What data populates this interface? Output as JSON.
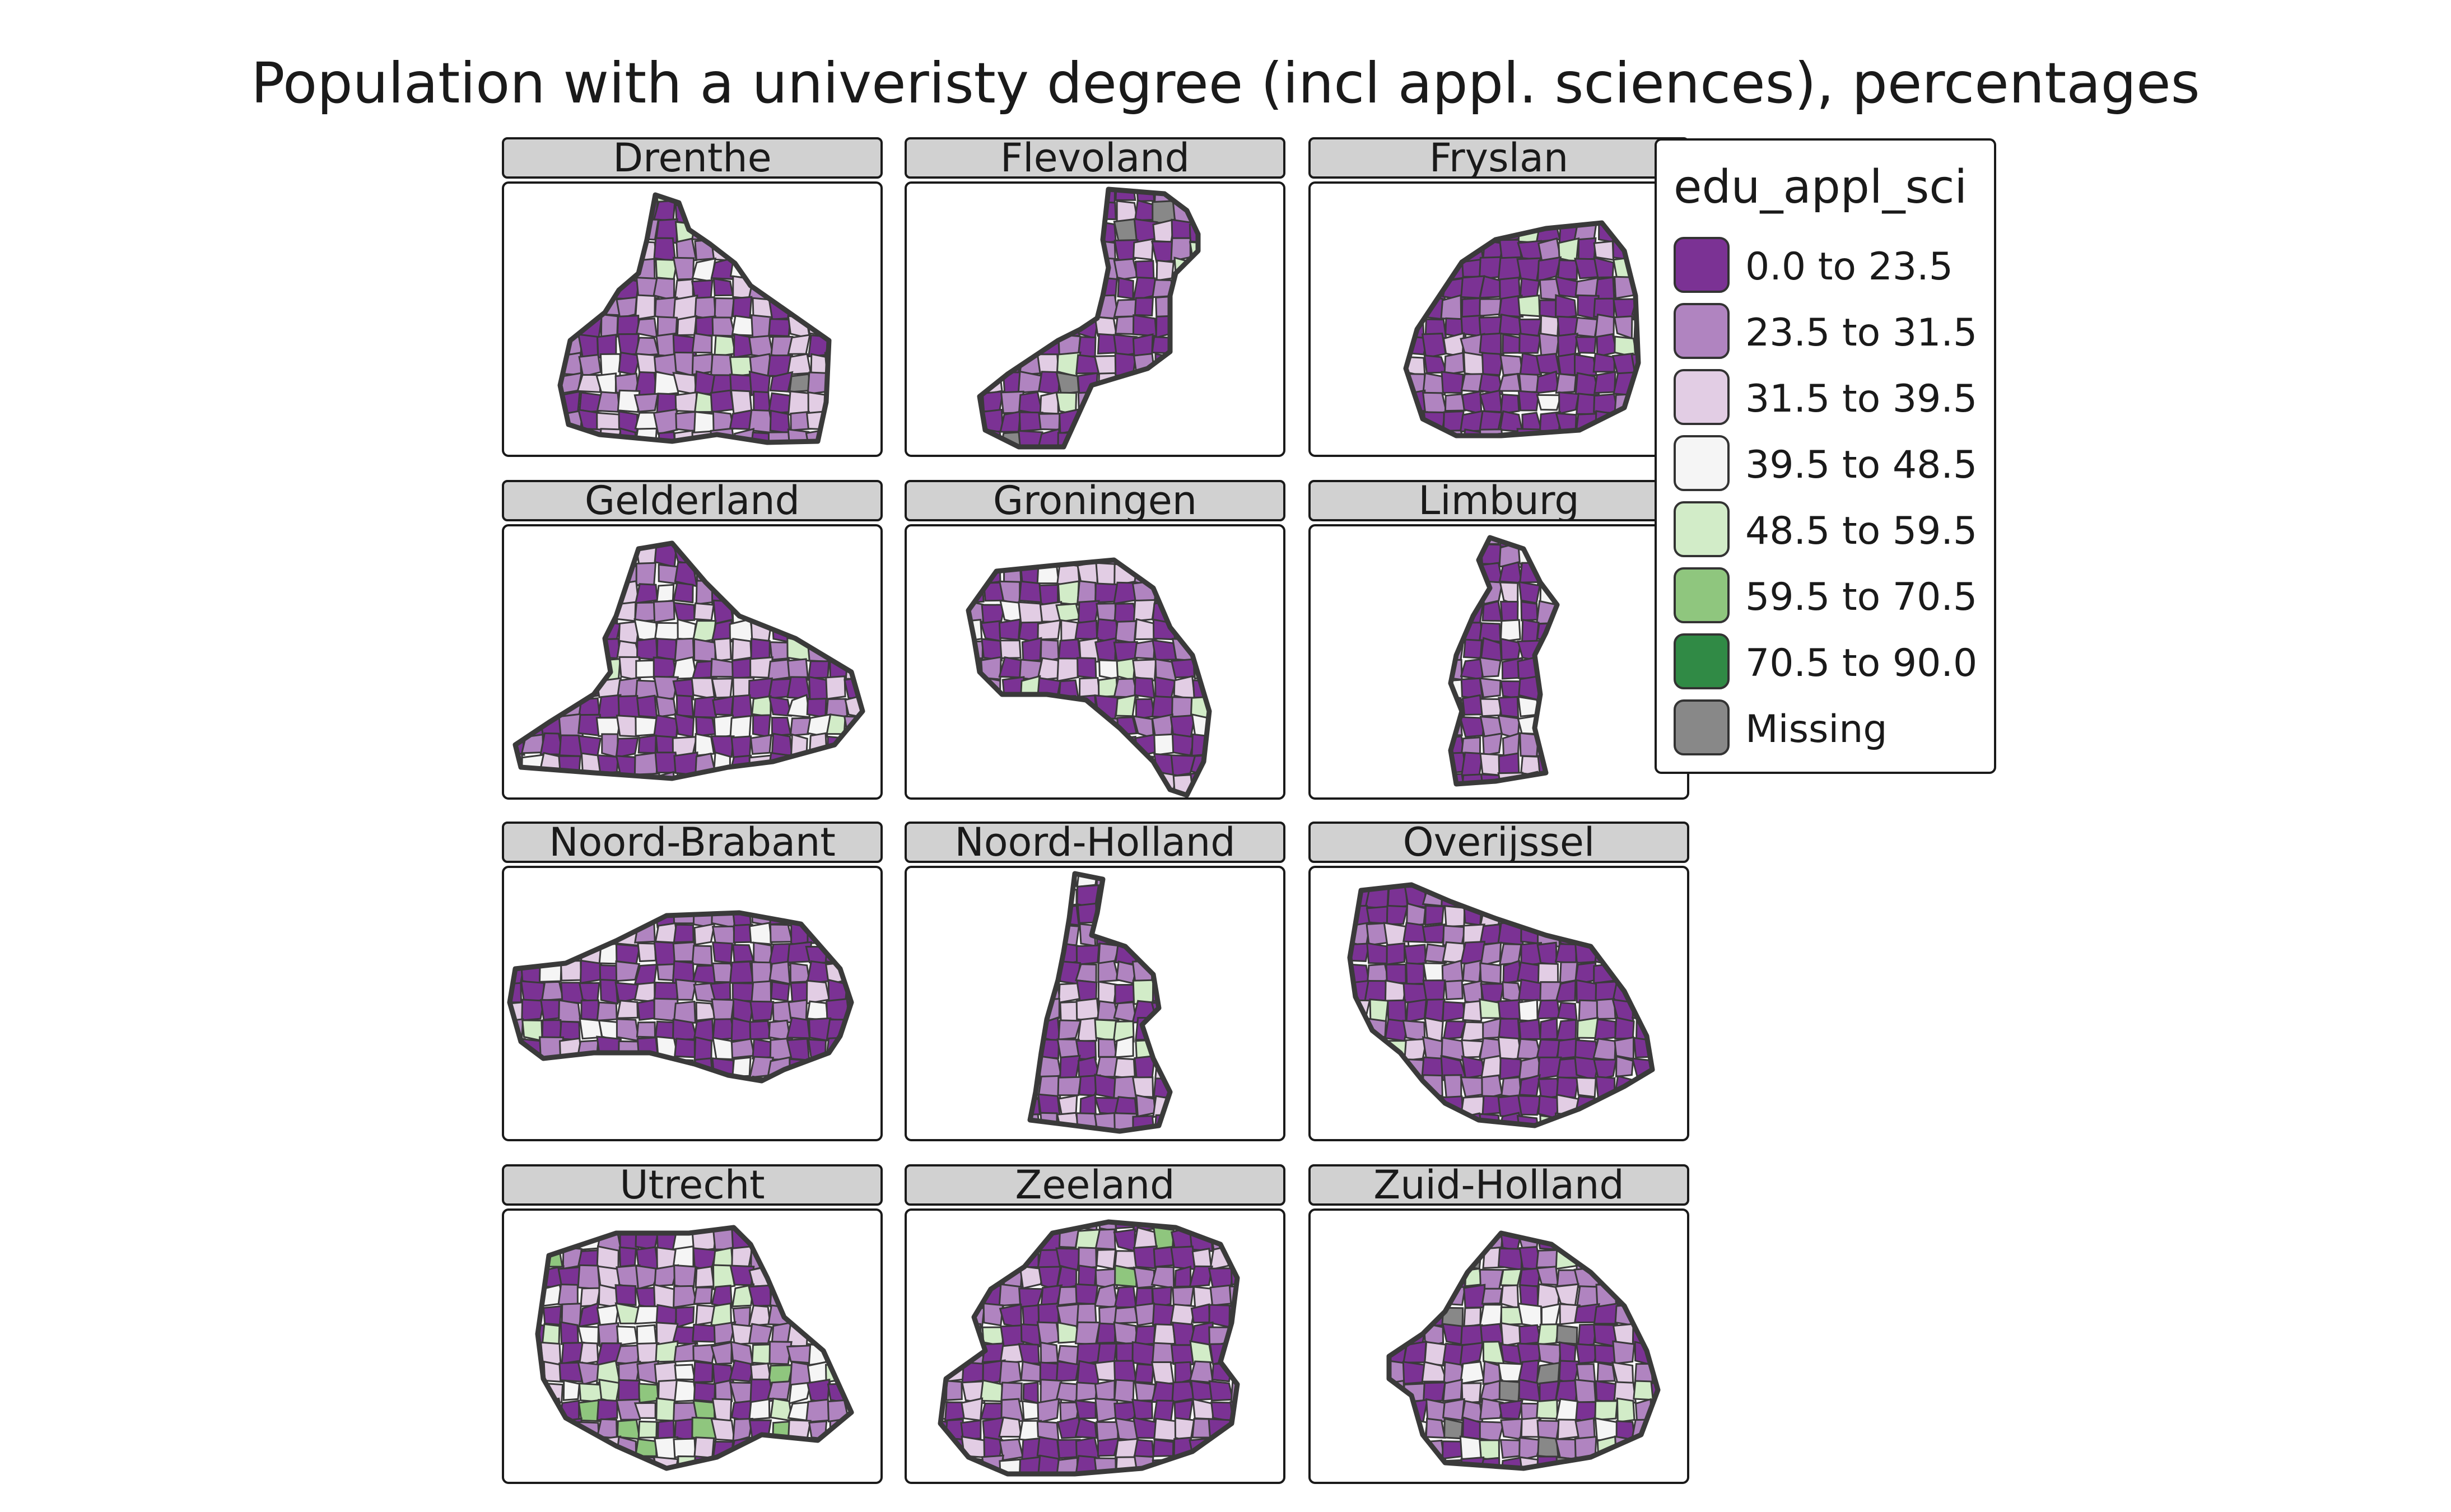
{
  "title": "Population with a univeristy degree (incl appl. sciences), percentages",
  "border_color": "#3a3a3a",
  "legend": {
    "title": "edu_appl_sci",
    "items": [
      {
        "label": "0.0 to 23.5",
        "color": "#7b3294"
      },
      {
        "label": "23.5 to 31.5",
        "color": "#b084c0"
      },
      {
        "label": "31.5 to 39.5",
        "color": "#e2cde4"
      },
      {
        "label": "39.5 to 48.5",
        "color": "#f5f5f5"
      },
      {
        "label": "48.5 to 59.5",
        "color": "#d2ecc8"
      },
      {
        "label": "59.5 to 70.5",
        "color": "#8fc67e"
      },
      {
        "label": "70.5 to 90.0",
        "color": "#308a45"
      },
      {
        "label": "Missing",
        "color": "#888888"
      }
    ]
  },
  "panels": [
    {
      "name": "Drenthe",
      "weights": [
        0.36,
        0.34,
        0.16,
        0.08,
        0.05,
        0.0,
        0.0,
        0.01
      ]
    },
    {
      "name": "Flevoland",
      "weights": [
        0.55,
        0.25,
        0.12,
        0.0,
        0.05,
        0.0,
        0.0,
        0.03
      ]
    },
    {
      "name": "Fryslan",
      "weights": [
        0.7,
        0.2,
        0.06,
        0.02,
        0.02,
        0.0,
        0.0,
        0.0
      ]
    },
    {
      "name": "Gelderland",
      "weights": [
        0.45,
        0.3,
        0.14,
        0.08,
        0.03,
        0.0,
        0.0,
        0.0
      ]
    },
    {
      "name": "Groningen",
      "weights": [
        0.48,
        0.3,
        0.12,
        0.04,
        0.06,
        0.0,
        0.0,
        0.0
      ]
    },
    {
      "name": "Limburg",
      "weights": [
        0.55,
        0.3,
        0.1,
        0.05,
        0.0,
        0.0,
        0.0,
        0.0
      ]
    },
    {
      "name": "Noord-Brabant",
      "weights": [
        0.5,
        0.3,
        0.1,
        0.06,
        0.04,
        0.0,
        0.0,
        0.0
      ]
    },
    {
      "name": "Noord-Holland",
      "weights": [
        0.4,
        0.35,
        0.14,
        0.05,
        0.06,
        0.0,
        0.0,
        0.0
      ]
    },
    {
      "name": "Overijssel",
      "weights": [
        0.5,
        0.3,
        0.15,
        0.03,
        0.02,
        0.0,
        0.0,
        0.0
      ]
    },
    {
      "name": "Utrecht",
      "weights": [
        0.3,
        0.3,
        0.16,
        0.08,
        0.1,
        0.06,
        0.0,
        0.0
      ]
    },
    {
      "name": "Zeeland",
      "weights": [
        0.5,
        0.32,
        0.12,
        0.02,
        0.03,
        0.01,
        0.0,
        0.0
      ]
    },
    {
      "name": "Zuid-Holland",
      "weights": [
        0.42,
        0.3,
        0.12,
        0.05,
        0.05,
        0.0,
        0.0,
        0.06
      ]
    }
  ]
}
